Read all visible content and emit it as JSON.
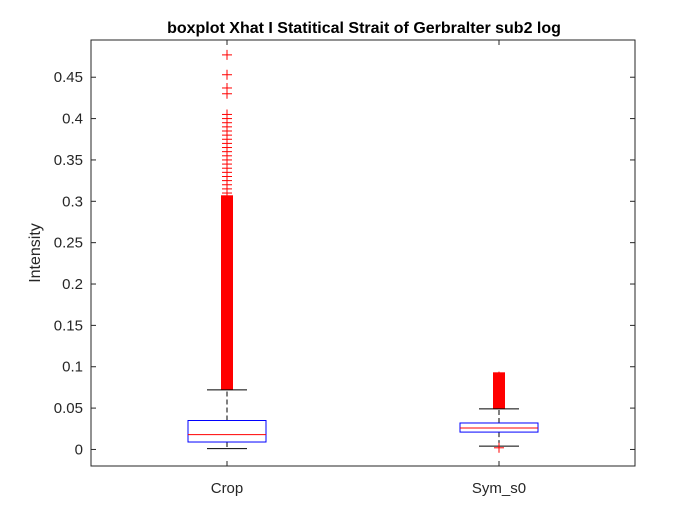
{
  "chart_data": {
    "type": "boxplot",
    "title": "boxplot Xhat I Statitical Strait of Gerbralter sub2 log",
    "xlabel": "",
    "ylabel": "Intensity",
    "ylim": [
      -0.02,
      0.495
    ],
    "yticks": [
      0,
      0.05,
      0.1,
      0.15,
      0.2,
      0.25,
      0.3,
      0.35,
      0.4,
      0.45
    ],
    "ytick_labels": [
      "0",
      "0.05",
      "0.1",
      "0.15",
      "0.2",
      "0.25",
      "0.3",
      "0.35",
      "0.4",
      "0.45"
    ],
    "categories": [
      "Crop",
      "Sym_s0"
    ],
    "grid": false,
    "series": [
      {
        "category": "Crop",
        "q1": 0.009,
        "median": 0.018,
        "q3": 0.035,
        "whisker_low": 0.001,
        "whisker_high": 0.072,
        "outlier_dense_range": [
          0.072,
          0.3
        ],
        "outliers": [
          0.305,
          0.31,
          0.315,
          0.32,
          0.325,
          0.33,
          0.335,
          0.34,
          0.345,
          0.35,
          0.355,
          0.36,
          0.365,
          0.37,
          0.375,
          0.38,
          0.385,
          0.39,
          0.395,
          0.4,
          0.405,
          0.43,
          0.437,
          0.453,
          0.477
        ]
      },
      {
        "category": "Sym_s0",
        "q1": 0.021,
        "median": 0.026,
        "q3": 0.032,
        "whisker_low": 0.004,
        "whisker_high": 0.049,
        "outlier_dense_range": [
          0.049,
          0.086
        ],
        "outliers": [
          0.088,
          0.002
        ]
      }
    ],
    "colors": {
      "box": "#0000ff",
      "median": "#ff0000",
      "whisker": "#000000",
      "outlier": "#ff0000",
      "axis": "#262626"
    }
  }
}
